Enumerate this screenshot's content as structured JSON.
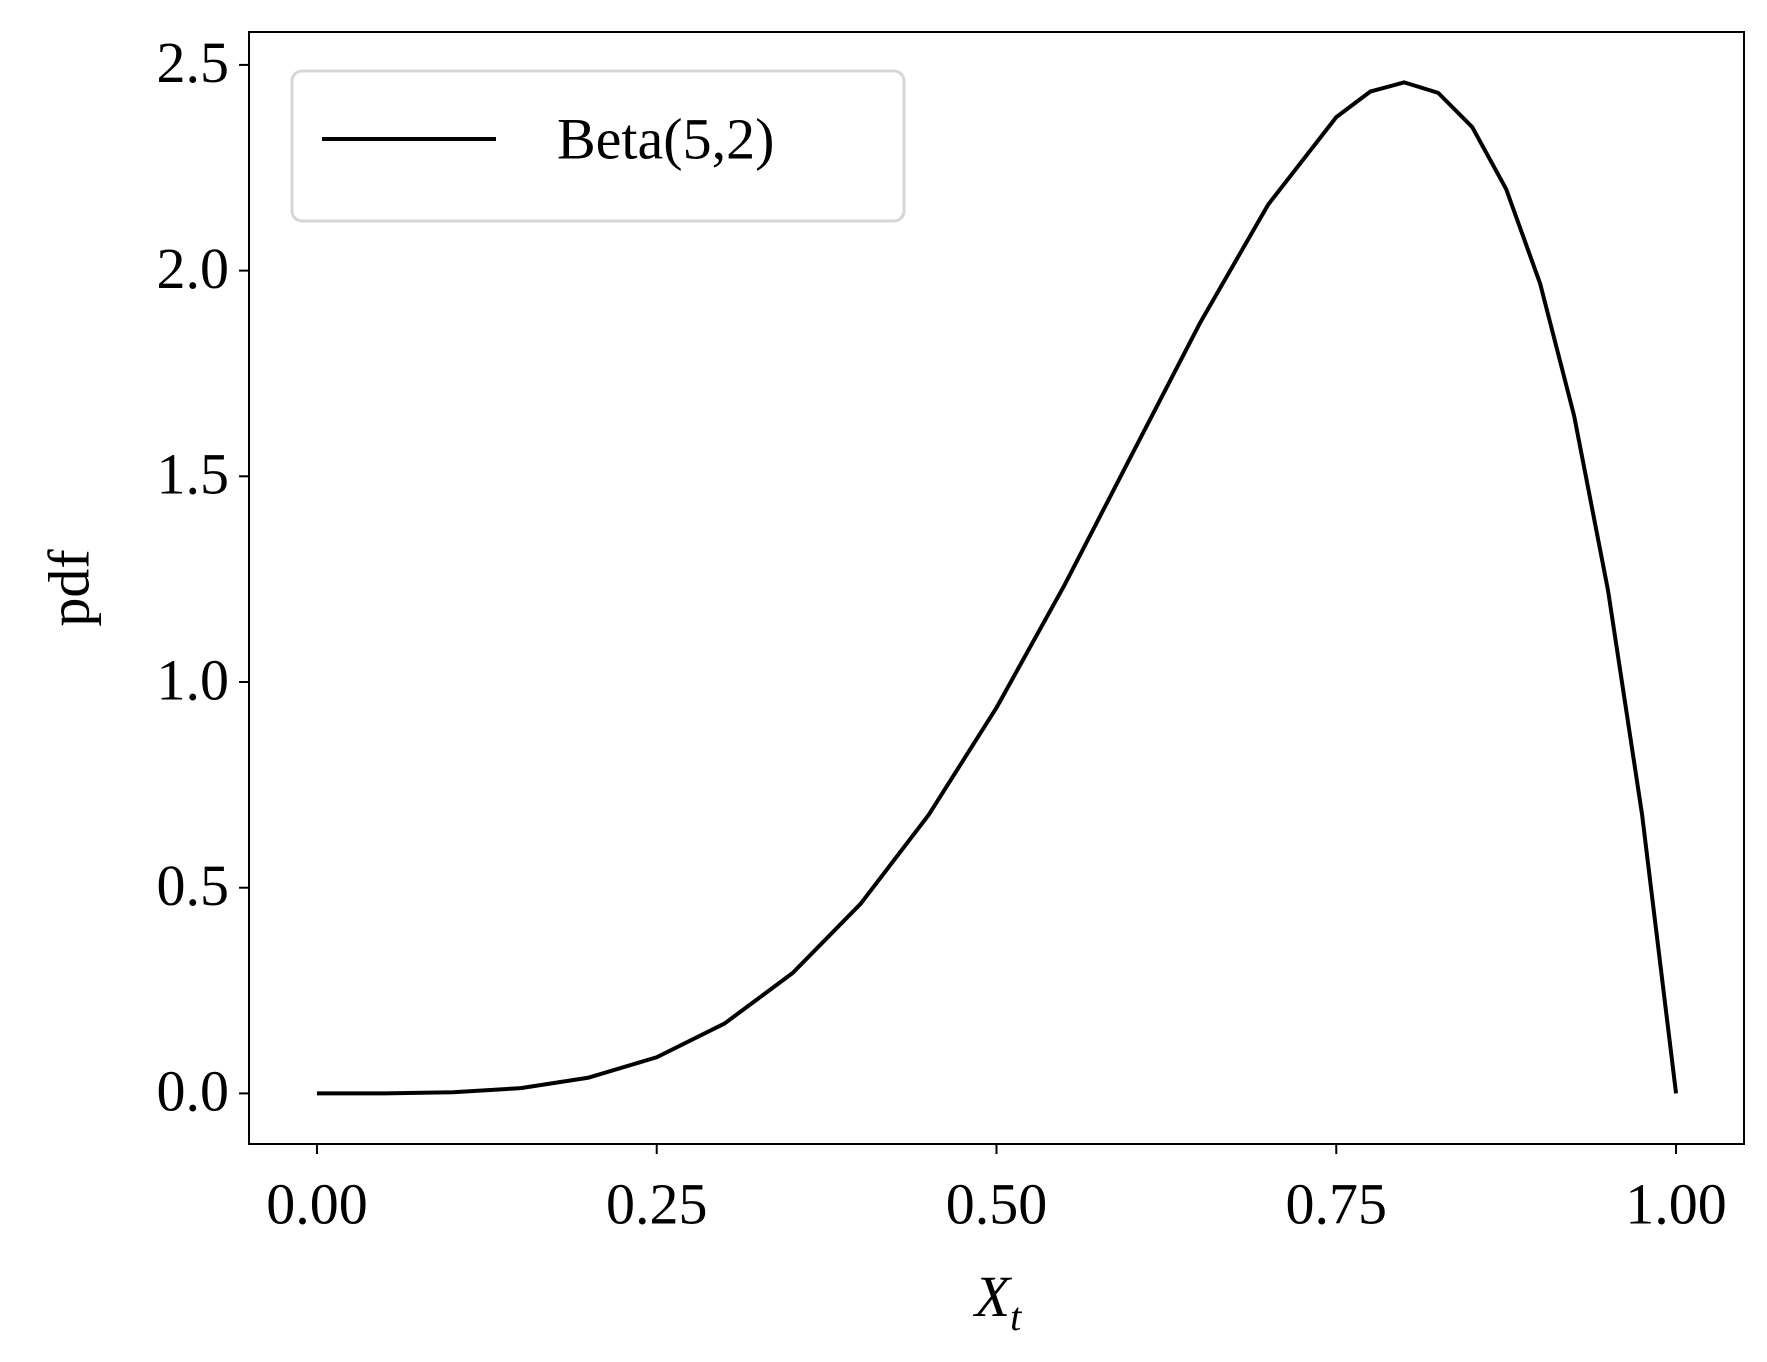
{
  "chart_data": {
    "type": "line",
    "xlabel": "X",
    "xlabel_subscript": "t",
    "ylabel": "pdf",
    "x": [
      0,
      0.05,
      0.1,
      0.15,
      0.2,
      0.25,
      0.3,
      0.35,
      0.4,
      0.45,
      0.5,
      0.55,
      0.6,
      0.65,
      0.7,
      0.75,
      0.775,
      0.8,
      0.825,
      0.85,
      0.875,
      0.9,
      0.925,
      0.95,
      0.975,
      1.0
    ],
    "series": [
      {
        "name": "Beta(5,2)",
        "color": "#000000",
        "values": [
          0,
          0.0002,
          0.0027,
          0.0129,
          0.0384,
          0.0879,
          0.1701,
          0.2926,
          0.4608,
          0.6766,
          0.9375,
          1.2353,
          1.5552,
          1.8743,
          2.1609,
          2.373,
          2.4351,
          2.4576,
          2.4321,
          2.349,
          2.1982,
          1.9683,
          1.6472,
          1.2218,
          0.6778,
          0
        ]
      }
    ],
    "xlim": [
      -0.05,
      1.05
    ],
    "xticks": [
      {
        "value": 0,
        "label": "0.00"
      },
      0.25,
      {
        "value": 0.5,
        "label": "0.50"
      },
      0.75,
      {
        "value": 1,
        "label": "1.00"
      }
    ],
    "ylim": [
      -0.123,
      2.58
    ],
    "yticks": [
      {
        "value": 0,
        "label": "0.0"
      },
      0.5,
      {
        "value": 1,
        "label": "1.0"
      },
      1.5,
      {
        "value": 2,
        "label": "2.0"
      },
      2.5
    ],
    "legend": "upper left",
    "grid": false
  }
}
